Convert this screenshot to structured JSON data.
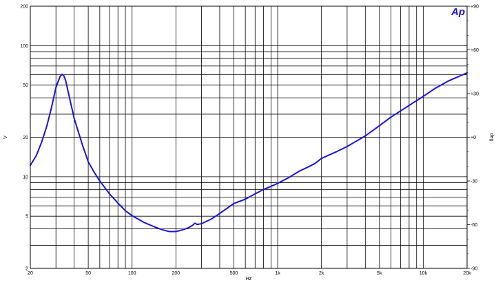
{
  "chart_data": {
    "type": "line",
    "title": "",
    "xlabel": "Hz",
    "ylabel": "V",
    "y2label": "deg",
    "x_scale": "log",
    "y_scale": "log",
    "xlim": [
      20,
      20000
    ],
    "ylim": [
      2,
      200
    ],
    "y2lim": [
      -90,
      90
    ],
    "grid": true,
    "logo_text": "Ap",
    "colors": {
      "series": "#1a14d6",
      "grid": "#000000",
      "logo": "#1a14d6"
    },
    "x_ticks": [
      20,
      50,
      100,
      200,
      500,
      1000,
      2000,
      5000,
      10000,
      20000
    ],
    "x_tick_labels": [
      "20",
      "50",
      "100",
      "200",
      "500",
      "1k",
      "2k",
      "5k",
      "10k",
      "20k"
    ],
    "y_ticks": [
      2,
      5,
      10,
      20,
      50,
      100,
      200
    ],
    "y_tick_labels": [
      "2",
      "5",
      "10",
      "20",
      "50",
      "100",
      "200"
    ],
    "y2_ticks": [
      -90,
      -60,
      -30,
      0,
      30,
      60,
      90
    ],
    "y2_tick_labels": [
      "-90",
      "-60",
      "-30",
      "+0",
      "+30",
      "+60",
      "+90"
    ],
    "series": [
      {
        "x": [
          20,
          22,
          24,
          26,
          28,
          30,
          32,
          33,
          34,
          35,
          36,
          38,
          40,
          43,
          46,
          50,
          55,
          60,
          70,
          80,
          90,
          100,
          120,
          140,
          160,
          180,
          200,
          220,
          240,
          260,
          270,
          280,
          300,
          350,
          400,
          450,
          500,
          550,
          600,
          700,
          800,
          900,
          1000,
          1200,
          1400,
          1600,
          1800,
          2000,
          2500,
          3000,
          4000,
          5000,
          6000,
          8000,
          10000,
          12000,
          15000,
          20000
        ],
        "y": [
          12.2,
          14.5,
          18.5,
          24.5,
          34,
          48,
          58,
          60.5,
          59,
          54,
          47,
          36,
          28,
          21.5,
          17,
          13,
          10.8,
          9.3,
          7.4,
          6.3,
          5.5,
          5.05,
          4.5,
          4.18,
          3.95,
          3.82,
          3.82,
          3.92,
          4.05,
          4.25,
          4.42,
          4.33,
          4.38,
          4.75,
          5.25,
          5.75,
          6.25,
          6.5,
          6.75,
          7.4,
          8,
          8.45,
          8.9,
          9.9,
          11,
          11.8,
          12.6,
          13.8,
          15.4,
          17,
          20.5,
          24.5,
          28.5,
          35,
          41,
          47,
          54,
          62
        ]
      }
    ]
  }
}
